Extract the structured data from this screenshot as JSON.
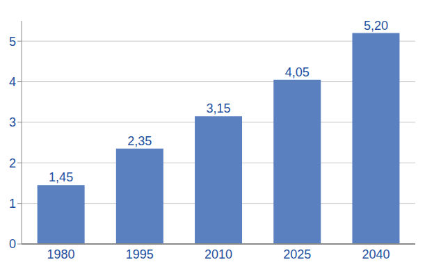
{
  "chart_data": {
    "type": "bar",
    "categories": [
      "1980",
      "1995",
      "2010",
      "2025",
      "2040"
    ],
    "values": [
      1.45,
      2.35,
      3.15,
      4.05,
      5.2
    ],
    "value_labels": [
      "1,45",
      "2,35",
      "3,15",
      "4,05",
      "5,20"
    ],
    "color": "#5b80c0",
    "ylim": [
      0,
      5.5
    ],
    "yticks": [
      0,
      1,
      2,
      3,
      4,
      5
    ],
    "grid": true,
    "data_labels": true
  }
}
